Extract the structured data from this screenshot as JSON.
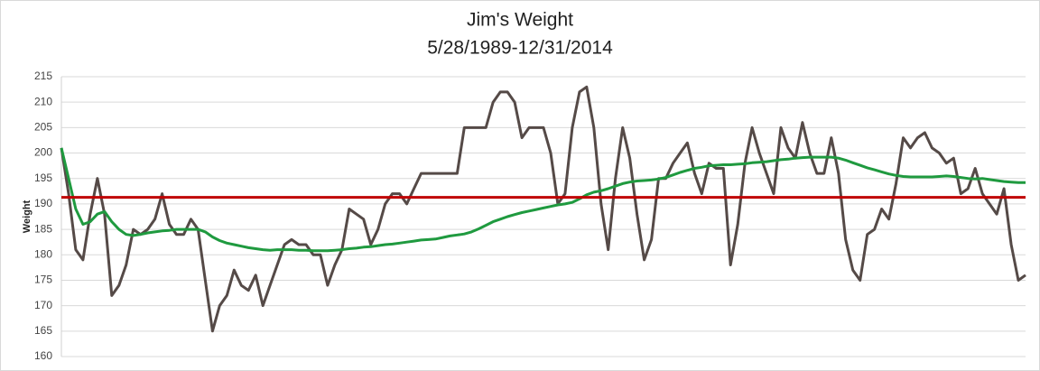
{
  "chart_data": {
    "type": "line",
    "title": "Jim's Weight",
    "subtitle": "5/28/1989-12/31/2014",
    "y_label": "Weight",
    "ylim": [
      160,
      215
    ],
    "yticks": [
      160,
      165,
      170,
      175,
      180,
      185,
      190,
      195,
      200,
      205,
      210,
      215
    ],
    "grid": true,
    "series": [
      {
        "color": "#554a47",
        "values": [
          201,
          192,
          181,
          179,
          188,
          195,
          188,
          172,
          174,
          178,
          185,
          184,
          185,
          187,
          192,
          186,
          184,
          184,
          187,
          185,
          175,
          165,
          170,
          172,
          177,
          174,
          173,
          176,
          170,
          174,
          178,
          182,
          183,
          182,
          182,
          180,
          180,
          174,
          178,
          181,
          189,
          188,
          187,
          182,
          185,
          190,
          192,
          192,
          190,
          193,
          196,
          196,
          196,
          196,
          196,
          196,
          205,
          205,
          205,
          205,
          210,
          212,
          212,
          210,
          203,
          205,
          205,
          205,
          200,
          190,
          192,
          205,
          212,
          213,
          205,
          190,
          181,
          195,
          205,
          199,
          188,
          179,
          183,
          195,
          195,
          198,
          200,
          202,
          196,
          192,
          198,
          197,
          197,
          178,
          186,
          198,
          205,
          200,
          196,
          192,
          205,
          201,
          199,
          206,
          200,
          196,
          196,
          203,
          196,
          183,
          177,
          175,
          184,
          185,
          189,
          187,
          194,
          203,
          201,
          203,
          204,
          201,
          200,
          198,
          199,
          192,
          193,
          197,
          192,
          190,
          188,
          193,
          182,
          175,
          176
        ]
      },
      {
        "color": "#1f9a3f",
        "values": [
          201,
          195,
          189,
          186,
          186.5,
          188,
          188.5,
          186.5,
          185,
          184,
          183.8,
          184,
          184.3,
          184.5,
          184.7,
          184.8,
          185,
          185,
          185,
          185,
          184.5,
          183.5,
          182.8,
          182.3,
          182,
          181.7,
          181.4,
          181.2,
          181,
          180.9,
          181,
          181,
          181,
          180.9,
          180.9,
          180.8,
          180.8,
          180.8,
          180.9,
          181,
          181.2,
          181.3,
          181.5,
          181.6,
          181.8,
          182,
          182.1,
          182.3,
          182.5,
          182.7,
          182.9,
          183,
          183.1,
          183.4,
          183.7,
          183.9,
          184.1,
          184.5,
          185.1,
          185.8,
          186.5,
          187,
          187.5,
          187.9,
          188.3,
          188.6,
          188.9,
          189.2,
          189.5,
          189.8,
          190,
          190.3,
          191,
          191.8,
          192.3,
          192.6,
          193,
          193.5,
          194,
          194.3,
          194.5,
          194.6,
          194.7,
          194.9,
          195.2,
          195.7,
          196.2,
          196.6,
          197,
          197.2,
          197.5,
          197.6,
          197.7,
          197.7,
          197.8,
          197.9,
          198.1,
          198.2,
          198.3,
          198.5,
          198.7,
          198.8,
          199,
          199.1,
          199.2,
          199.2,
          199.2,
          199.2,
          199,
          198.6,
          198.1,
          197.6,
          197.1,
          196.7,
          196.3,
          195.9,
          195.6,
          195.4,
          195.3,
          195.3,
          195.3,
          195.3,
          195.4,
          195.5,
          195.4,
          195.2,
          195,
          194.9,
          195,
          194.8,
          194.6,
          194.4,
          194.3,
          194.2,
          194.2
        ]
      }
    ],
    "hline": {
      "value": 191.3,
      "color": "#c00000"
    }
  }
}
